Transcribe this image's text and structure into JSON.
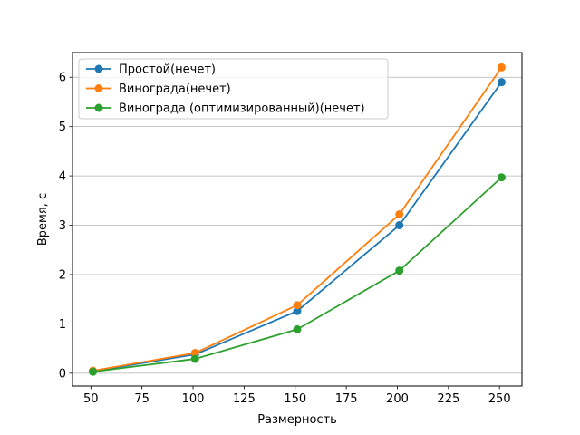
{
  "chart_data": {
    "type": "line",
    "title": "",
    "xlabel": "Размерность",
    "ylabel": "Время, с",
    "xlim": [
      41,
      261
    ],
    "ylim": [
      -0.26,
      6.5
    ],
    "xticks": [
      50,
      75,
      100,
      125,
      150,
      175,
      200,
      225,
      250
    ],
    "yticks": [
      0,
      1,
      2,
      3,
      4,
      5,
      6
    ],
    "grid": "y",
    "legend_position": "top-left",
    "x": [
      51,
      101,
      151,
      201,
      251
    ],
    "series": [
      {
        "name": "Простой(нечет)",
        "color": "#1f77b4",
        "values": [
          0.04,
          0.38,
          1.26,
          3.0,
          5.9
        ]
      },
      {
        "name": "Винограда(нечет)",
        "color": "#ff7f0e",
        "values": [
          0.05,
          0.41,
          1.38,
          3.22,
          6.2
        ]
      },
      {
        "name": "Винограда (оптимизированный)(нечет)",
        "color": "#2ca02c",
        "values": [
          0.03,
          0.29,
          0.89,
          2.08,
          3.97
        ]
      }
    ]
  }
}
